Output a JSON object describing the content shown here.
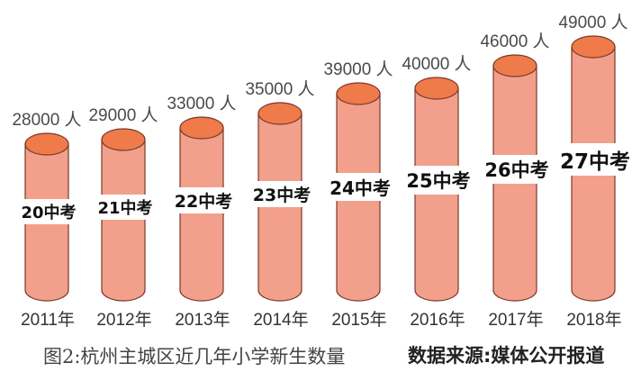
{
  "chart_data": {
    "type": "bar",
    "style": "3d-cylinder",
    "title": "图2:杭州主城区近几年小学新生数量",
    "source": "数据来源:媒体公开报道",
    "categories": [
      "2011年",
      "2012年",
      "2013年",
      "2014年",
      "2015年",
      "2016年",
      "2017年",
      "2018年"
    ],
    "values": [
      28000,
      29000,
      33000,
      35000,
      39000,
      40000,
      46000,
      49000
    ],
    "value_labels": [
      "28000 人",
      "29000 人",
      "33000 人",
      "35000 人",
      "39000 人",
      "40000 人",
      "46000 人",
      "49000 人"
    ],
    "annotations": [
      "20中考",
      "21中考",
      "22中考",
      "23中考",
      "24中考",
      "25中考",
      "26中考",
      "27中考"
    ],
    "unit": "人",
    "xlabel": "",
    "ylabel": "",
    "grid": false,
    "legend": "none",
    "colors": {
      "body": "#f2a08c",
      "top": "#ef7a4a",
      "outline": "#7a3a2a"
    }
  },
  "labels": {
    "caption": "图2:杭州主城区近几年小学新生数量",
    "source": "数据来源:媒体公开报道"
  }
}
